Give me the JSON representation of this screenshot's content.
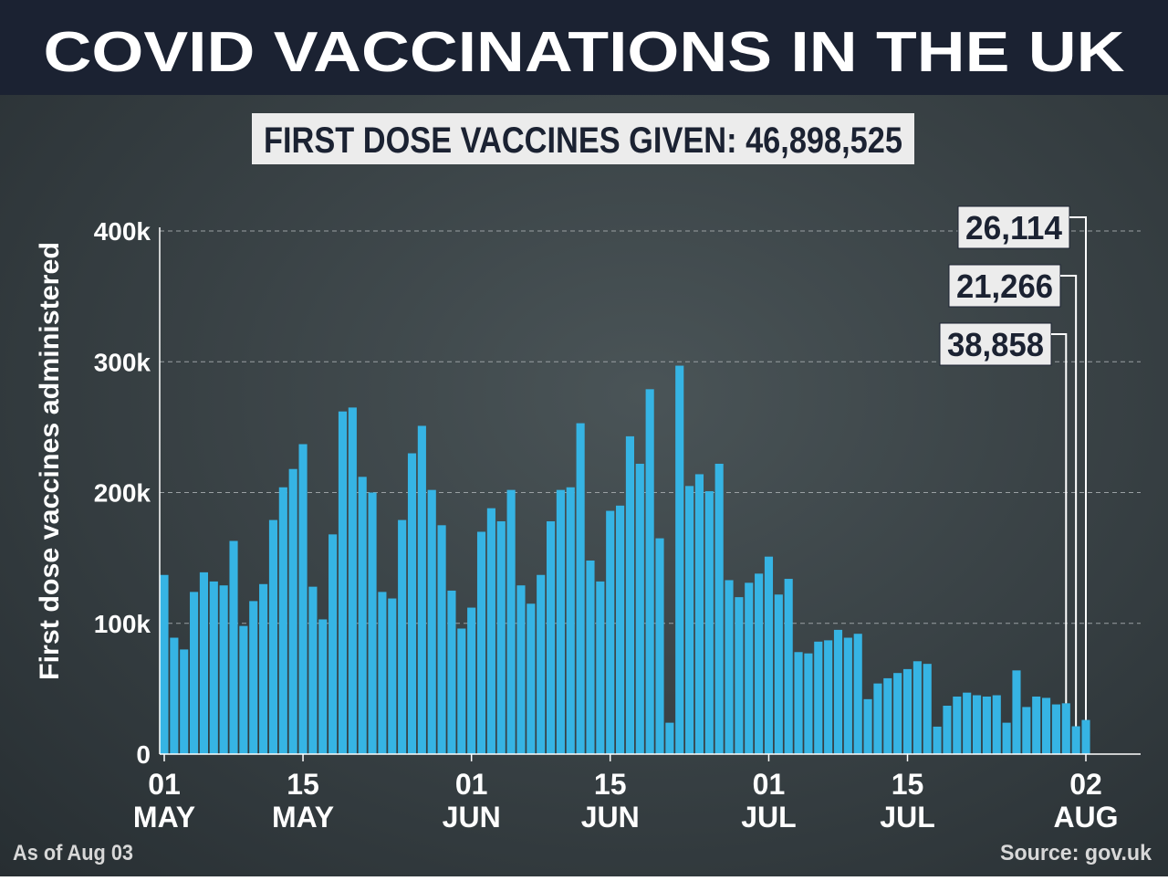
{
  "chart_data": {
    "type": "bar",
    "title": "COVID VACCINATIONS IN THE UK",
    "subtitle": "FIRST DOSE VACCINES GIVEN: 46,898,525",
    "y_label": "First dose vaccines administered",
    "note": "As of Aug 03",
    "source": "Source: gov.uk",
    "color": "#36b4e4",
    "grid": true,
    "ylim": [
      0,
      400000
    ],
    "yticks": [
      0,
      {
        "value": 100000,
        "label": "100k"
      },
      {
        "value": 200000,
        "label": "200k"
      },
      {
        "value": 300000,
        "label": "300k"
      },
      {
        "value": 400000,
        "label": "400k"
      }
    ],
    "categories": [
      "01 MAY",
      null,
      null,
      null,
      null,
      null,
      null,
      null,
      null,
      null,
      null,
      null,
      null,
      null,
      "15 MAY",
      null,
      null,
      null,
      null,
      null,
      null,
      null,
      null,
      null,
      null,
      null,
      null,
      null,
      null,
      null,
      null,
      "01 JUN",
      null,
      null,
      null,
      null,
      null,
      null,
      null,
      null,
      null,
      null,
      null,
      null,
      null,
      "15 JUN",
      null,
      null,
      null,
      null,
      null,
      null,
      null,
      null,
      null,
      null,
      null,
      null,
      null,
      null,
      null,
      "01 JUL",
      null,
      null,
      null,
      null,
      null,
      null,
      null,
      null,
      null,
      null,
      null,
      null,
      null,
      "15 JUL",
      null,
      null,
      null,
      null,
      null,
      null,
      null,
      null,
      null,
      null,
      null,
      null,
      null,
      null,
      null,
      null,
      null,
      "02 AUG"
    ],
    "values": [
      137000,
      89000,
      80000,
      124000,
      139000,
      132000,
      129000,
      163000,
      98000,
      117000,
      130000,
      179000,
      204000,
      218000,
      237000,
      128000,
      103000,
      168000,
      262000,
      265000,
      212000,
      200000,
      124000,
      119000,
      179000,
      230000,
      251000,
      202000,
      175000,
      125000,
      96000,
      112000,
      170000,
      188000,
      178000,
      202000,
      129000,
      115000,
      137000,
      178000,
      202000,
      204000,
      253000,
      148000,
      132000,
      186000,
      190000,
      243000,
      222000,
      279000,
      165000,
      24000,
      297000,
      205000,
      214000,
      201000,
      222000,
      133000,
      120000,
      131000,
      138000,
      151000,
      122000,
      134000,
      78000,
      77000,
      86000,
      87000,
      95000,
      89000,
      92000,
      42000,
      54000,
      58000,
      62000,
      65000,
      71000,
      69000,
      21000,
      37000,
      44000,
      47000,
      45000,
      44000,
      45000,
      24000,
      64000,
      36000,
      44000,
      43000,
      38000,
      38858,
      21266,
      26114
    ],
    "value_labels": [
      null,
      null,
      null,
      null,
      null,
      null,
      null,
      null,
      null,
      null,
      null,
      null,
      null,
      null,
      null,
      null,
      null,
      null,
      null,
      null,
      null,
      null,
      null,
      null,
      null,
      null,
      null,
      null,
      null,
      null,
      null,
      null,
      null,
      null,
      null,
      null,
      null,
      null,
      null,
      null,
      null,
      null,
      null,
      null,
      null,
      null,
      null,
      null,
      null,
      null,
      null,
      null,
      null,
      null,
      null,
      null,
      null,
      null,
      null,
      null,
      null,
      null,
      null,
      null,
      null,
      null,
      null,
      null,
      null,
      null,
      null,
      null,
      null,
      null,
      null,
      null,
      null,
      null,
      null,
      null,
      null,
      null,
      null,
      null,
      null,
      null,
      null,
      null,
      null,
      null,
      null,
      "38,858",
      "21,266",
      "26,114"
    ]
  }
}
